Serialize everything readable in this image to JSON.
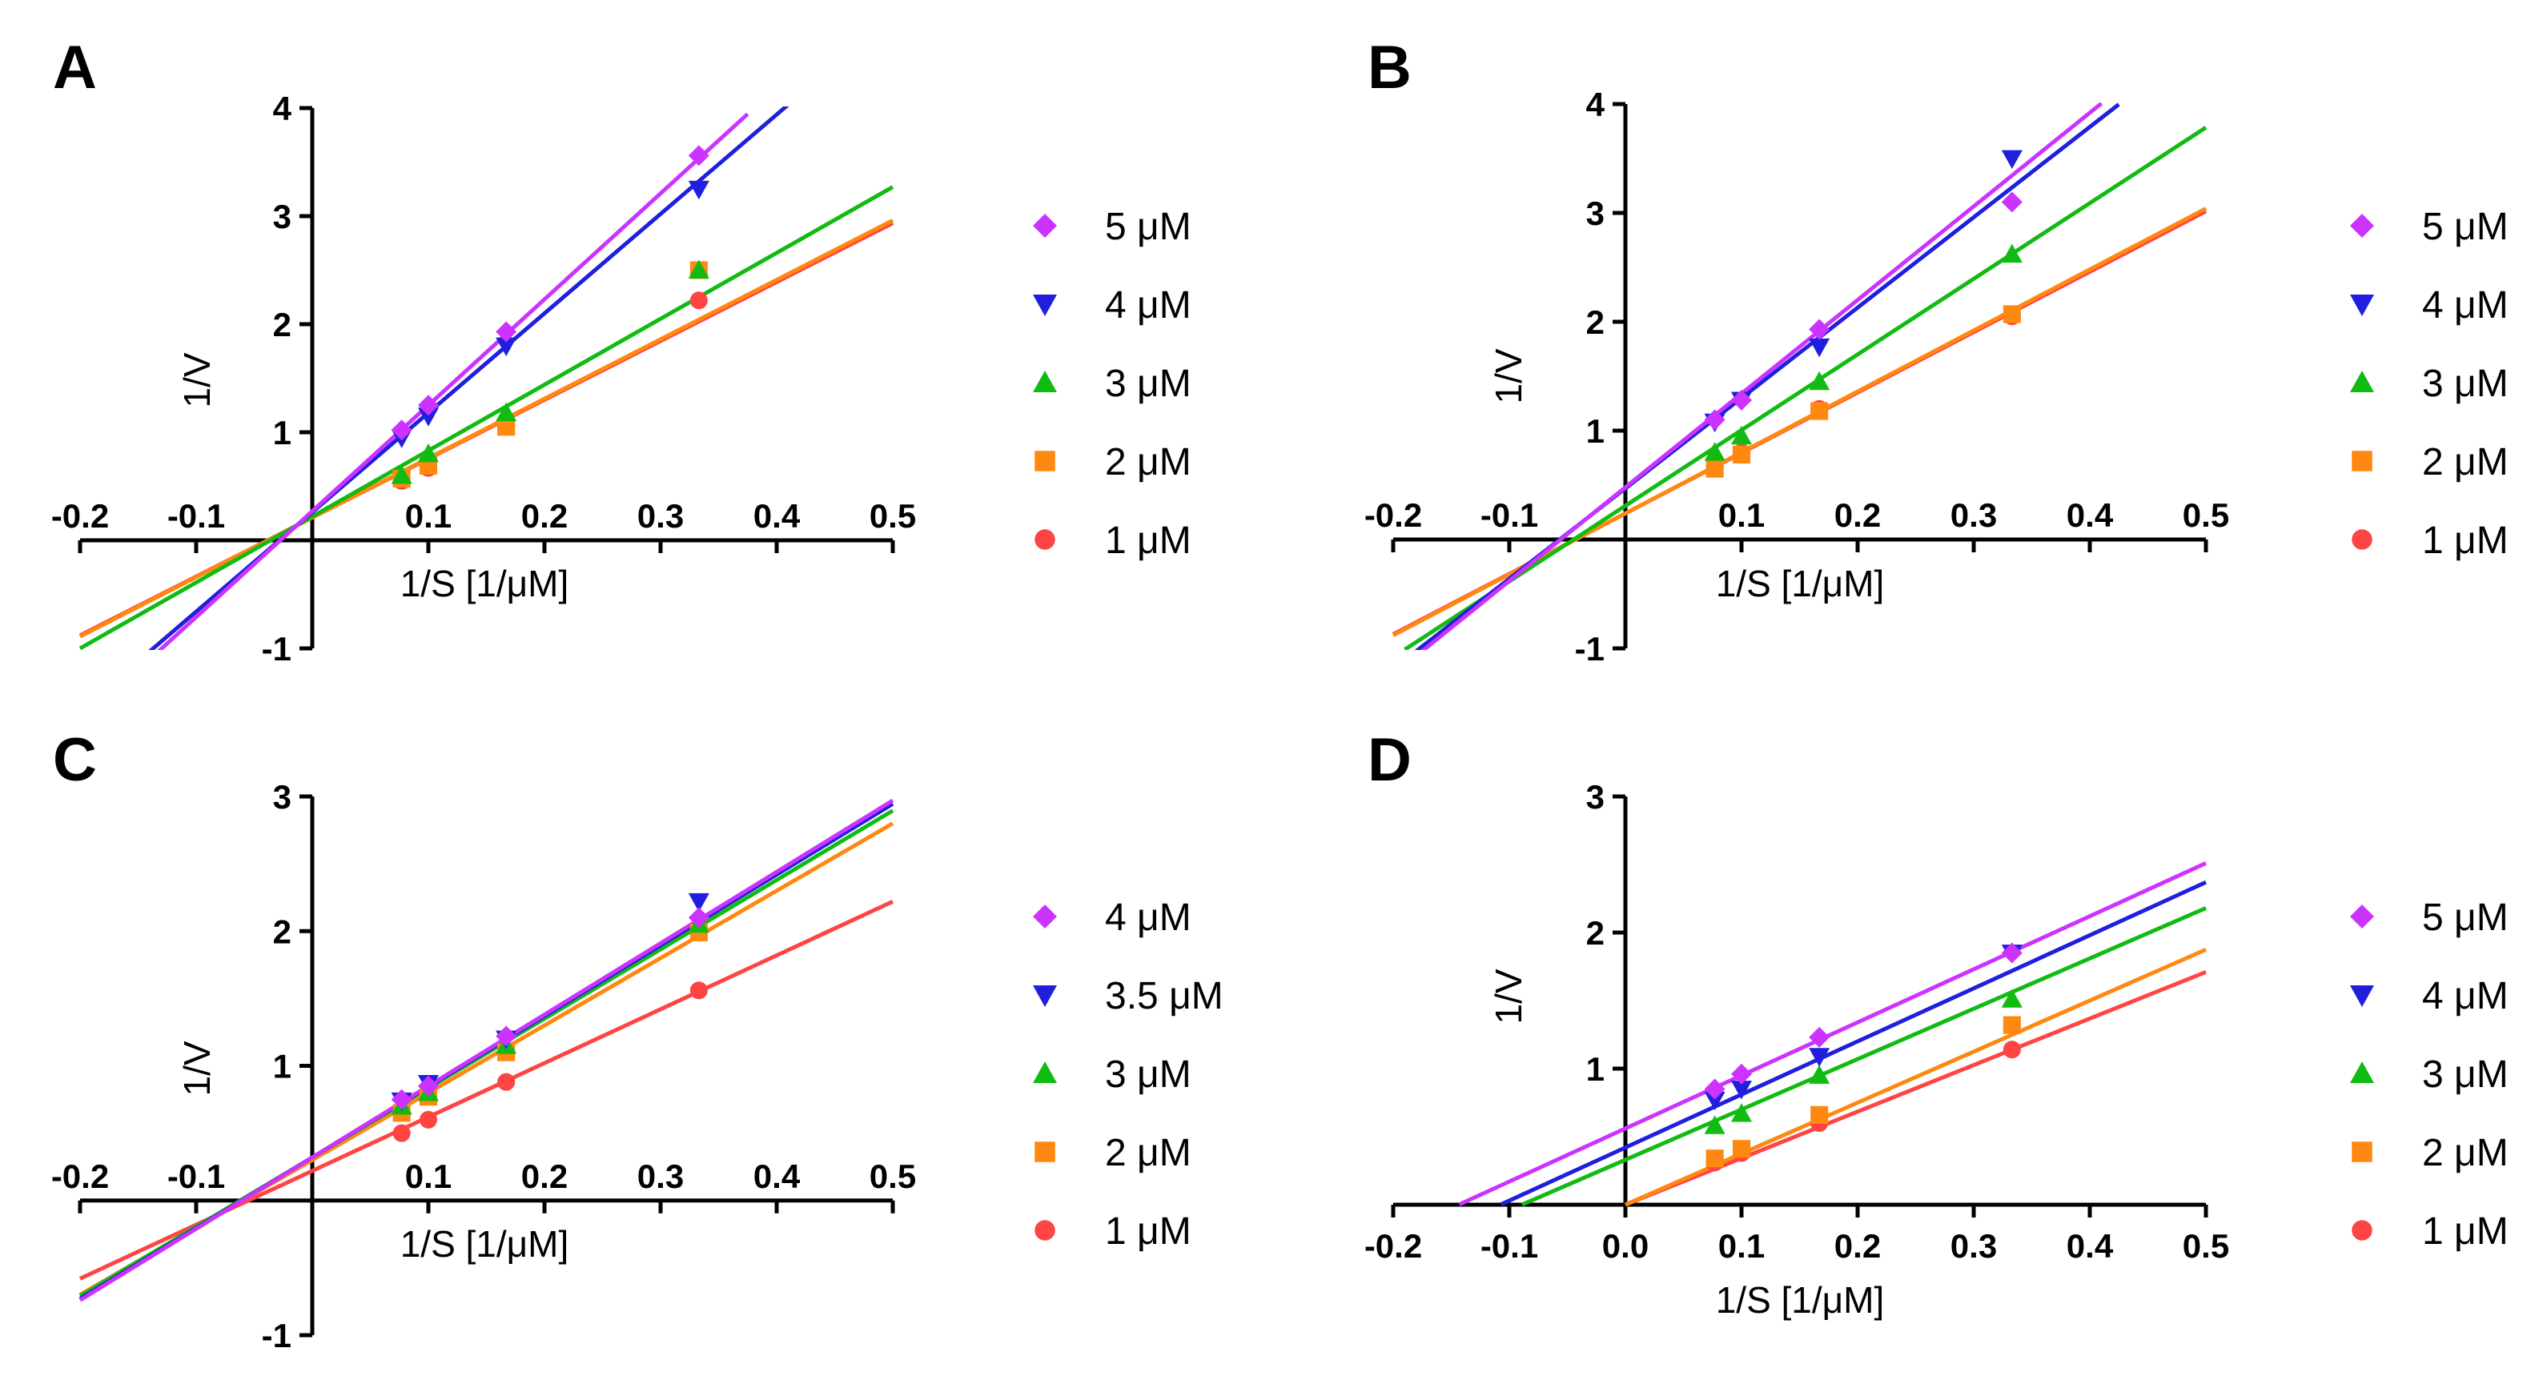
{
  "chart_data": [
    {
      "panel": "A",
      "type": "line",
      "xlabel": "1/S [1/μM]",
      "ylabel": "1/V",
      "xlim": [
        -0.2,
        0.5
      ],
      "ylim": [
        -1,
        4
      ],
      "x_ticks": [
        "-0.2",
        "-0.1",
        "0.1",
        "0.2",
        "0.3",
        "0.4",
        "0.5"
      ],
      "y_ticks": [
        "-1",
        "1",
        "2",
        "3",
        "4"
      ],
      "x_points": [
        0.077,
        0.1,
        0.167,
        0.333
      ],
      "series": [
        {
          "name": "5 μM",
          "color": "#cc33ff",
          "marker": "diamond",
          "y": [
            1.02,
            1.25,
            1.93,
            3.56
          ],
          "slope": 9.8,
          "intercept": 0.27,
          "fit_x": [
            -0.14,
            0.375
          ]
        },
        {
          "name": "4 μM",
          "color": "#1f1fdd",
          "marker": "triangle-down",
          "y": [
            0.95,
            1.15,
            1.8,
            3.25
          ],
          "slope": 9.2,
          "intercept": 0.26,
          "fit_x": [
            -0.14,
            0.41
          ]
        },
        {
          "name": "3 μM",
          "color": "#11bb11",
          "marker": "triangle-up",
          "y": [
            0.6,
            0.8,
            1.18,
            2.5
          ],
          "slope": 6.1,
          "intercept": 0.22,
          "fit_x": [
            -0.2,
            0.5
          ]
        },
        {
          "name": "2 μM",
          "color": "#ff8811",
          "marker": "square",
          "y": [
            0.57,
            0.69,
            1.05,
            2.5
          ],
          "slope": 5.5,
          "intercept": 0.21,
          "fit_x": [
            -0.2,
            0.5
          ]
        },
        {
          "name": "1 μM",
          "color": "#ff4444",
          "marker": "circle",
          "y": [
            0.55,
            0.67,
            1.05,
            2.22
          ],
          "slope": 5.45,
          "intercept": 0.21,
          "fit_x": [
            -0.2,
            0.5
          ]
        }
      ]
    },
    {
      "panel": "B",
      "type": "line",
      "xlabel": "1/S [1/μM]",
      "ylabel": "1/V",
      "xlim": [
        -0.2,
        0.5
      ],
      "ylim": [
        -1,
        4
      ],
      "x_ticks": [
        "-0.2",
        "-0.1",
        "0.1",
        "0.2",
        "0.3",
        "0.4",
        "0.5"
      ],
      "y_ticks": [
        "-1",
        "1",
        "2",
        "3",
        "4"
      ],
      "x_points": [
        0.077,
        0.1,
        0.167,
        0.333
      ],
      "series": [
        {
          "name": "5 μM",
          "color": "#cc33ff",
          "marker": "diamond",
          "y": [
            1.1,
            1.28,
            1.93,
            3.1
          ],
          "slope": 8.6,
          "intercept": 0.48,
          "fit_x": [
            -0.19,
            0.41
          ]
        },
        {
          "name": "4 μM",
          "color": "#1f1fdd",
          "marker": "triangle-down",
          "y": [
            1.08,
            1.28,
            1.77,
            3.5
          ],
          "slope": 8.3,
          "intercept": 0.47,
          "fit_x": [
            -0.19,
            0.425
          ]
        },
        {
          "name": "3 μM",
          "color": "#11bb11",
          "marker": "triangle-up",
          "y": [
            0.8,
            0.95,
            1.45,
            2.62
          ],
          "slope": 6.95,
          "intercept": 0.31,
          "fit_x": [
            -0.19,
            0.5
          ]
        },
        {
          "name": "2 μM",
          "color": "#ff8811",
          "marker": "square",
          "y": [
            0.65,
            0.78,
            1.18,
            2.07
          ],
          "slope": 5.6,
          "intercept": 0.24,
          "fit_x": [
            -0.2,
            0.5
          ]
        },
        {
          "name": "1 μM",
          "color": "#ff4444",
          "marker": "circle",
          "y": [
            0.66,
            0.8,
            1.2,
            2.05
          ],
          "slope": 5.55,
          "intercept": 0.24,
          "fit_x": [
            -0.2,
            0.5
          ]
        }
      ]
    },
    {
      "panel": "C",
      "type": "line",
      "xlabel": "1/S [1/μM]",
      "ylabel": "1/V",
      "xlim": [
        -0.2,
        0.5
      ],
      "ylim": [
        -1,
        3
      ],
      "x_ticks": [
        "-0.2",
        "-0.1",
        "0.1",
        "0.2",
        "0.3",
        "0.4",
        "0.5"
      ],
      "y_ticks": [
        "-1",
        "1",
        "2",
        "3"
      ],
      "x_points": [
        0.077,
        0.1,
        0.167,
        0.333
      ],
      "series": [
        {
          "name": "4 μM",
          "color": "#cc33ff",
          "marker": "diamond",
          "y": [
            0.75,
            0.85,
            1.22,
            2.1
          ],
          "slope": 5.3,
          "intercept": 0.32,
          "fit_x": [
            -0.2,
            0.5
          ]
        },
        {
          "name": "3.5 μM",
          "color": "#1f1fdd",
          "marker": "triangle-down",
          "y": [
            0.74,
            0.87,
            1.2,
            2.22
          ],
          "slope": 5.25,
          "intercept": 0.32,
          "fit_x": [
            -0.2,
            0.5
          ]
        },
        {
          "name": "3 μM",
          "color": "#11bb11",
          "marker": "triangle-up",
          "y": [
            0.7,
            0.8,
            1.15,
            2.05
          ],
          "slope": 5.15,
          "intercept": 0.32,
          "fit_x": [
            -0.2,
            0.5
          ]
        },
        {
          "name": "2 μM",
          "color": "#ff8811",
          "marker": "square",
          "y": [
            0.65,
            0.77,
            1.1,
            1.99
          ],
          "slope": 5.0,
          "intercept": 0.3,
          "fit_x": [
            -0.2,
            0.5
          ]
        },
        {
          "name": "1 μM",
          "color": "#ff4444",
          "marker": "circle",
          "y": [
            0.5,
            0.6,
            0.88,
            1.56
          ],
          "slope": 4.0,
          "intercept": 0.22,
          "fit_x": [
            -0.2,
            0.5
          ]
        }
      ]
    },
    {
      "panel": "D",
      "type": "line",
      "xlabel": "1/S [1/μM]",
      "ylabel": "1/V",
      "xlim": [
        -0.2,
        0.5
      ],
      "ylim": [
        0,
        3
      ],
      "x_ticks": [
        "-0.2",
        "-0.1",
        "0.0",
        "0.1",
        "0.2",
        "0.3",
        "0.4",
        "0.5"
      ],
      "y_ticks": [
        "1",
        "2",
        "3"
      ],
      "x_points": [
        0.077,
        0.1,
        0.167,
        0.333
      ],
      "series": [
        {
          "name": "5 μM",
          "color": "#cc33ff",
          "marker": "diamond",
          "y": [
            0.85,
            0.96,
            1.23,
            1.85
          ],
          "slope": 3.9,
          "intercept": 0.56,
          "fit_x": [
            -0.143,
            0.5
          ]
        },
        {
          "name": "4 μM",
          "color": "#1f1fdd",
          "marker": "triangle-down",
          "y": [
            0.77,
            0.85,
            1.09,
            1.85
          ],
          "slope": 3.9,
          "intercept": 0.42,
          "fit_x": [
            -0.107,
            0.5
          ]
        },
        {
          "name": "3 μM",
          "color": "#11bb11",
          "marker": "triangle-up",
          "y": [
            0.58,
            0.67,
            0.95,
            1.51
          ],
          "slope": 3.7,
          "intercept": 0.33,
          "fit_x": [
            -0.089,
            0.5
          ]
        },
        {
          "name": "2 μM",
          "color": "#ff8811",
          "marker": "square",
          "y": [
            0.34,
            0.41,
            0.66,
            1.32
          ],
          "slope": 3.75,
          "intercept": 0.0,
          "fit_x": [
            0.0,
            0.5
          ]
        },
        {
          "name": "1 μM",
          "color": "#ff4444",
          "marker": "circle",
          "y": [
            0.31,
            0.38,
            0.6,
            1.14
          ],
          "slope": 3.42,
          "intercept": 0.0,
          "fit_x": [
            0.0,
            0.5
          ]
        }
      ]
    }
  ]
}
